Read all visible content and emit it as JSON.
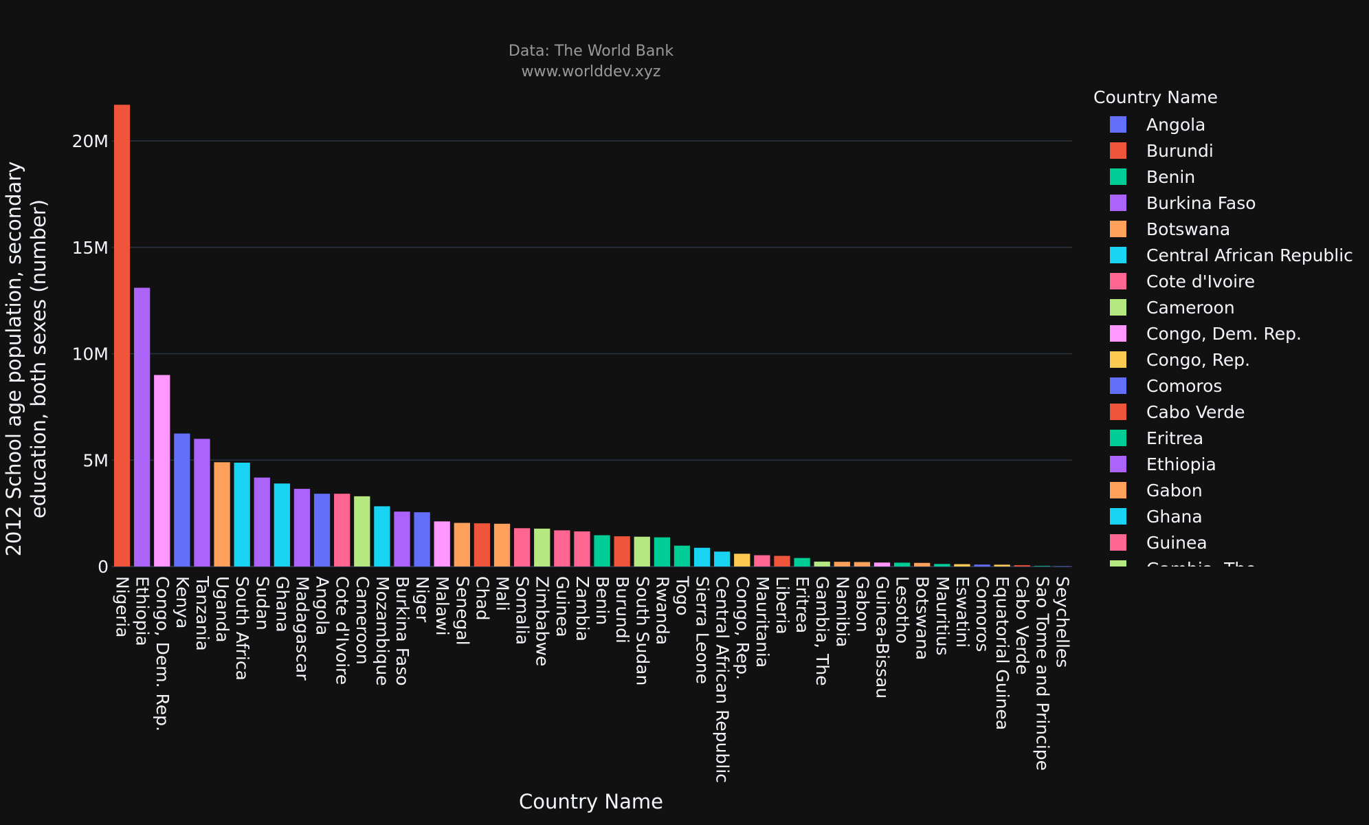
{
  "chart_data": {
    "type": "bar",
    "title": "Data: The World Bank",
    "subtitle": "www.worlddev.xyz",
    "xlabel": "Country Name",
    "ylabel_lines": [
      "2012 School age population, secondary",
      "education, both sexes (number)"
    ],
    "ylim": [
      0,
      22000000
    ],
    "yticks": [
      {
        "value": 0,
        "label": "0"
      },
      {
        "value": 5000000,
        "label": "5M"
      },
      {
        "value": 10000000,
        "label": "10M"
      },
      {
        "value": 15000000,
        "label": "15M"
      },
      {
        "value": 20000000,
        "label": "20M"
      }
    ],
    "grid": true,
    "legend_position": "right",
    "legend_title": "Country Name",
    "legend": [
      {
        "label": "Angola",
        "color": "#636efa"
      },
      {
        "label": "Burundi",
        "color": "#EF553B"
      },
      {
        "label": "Benin",
        "color": "#00cc96"
      },
      {
        "label": "Burkina Faso",
        "color": "#ab63fa"
      },
      {
        "label": "Botswana",
        "color": "#FFA15A"
      },
      {
        "label": "Central African Republic",
        "color": "#19d3f3"
      },
      {
        "label": "Cote d'Ivoire",
        "color": "#FF6692"
      },
      {
        "label": "Cameroon",
        "color": "#B6E880"
      },
      {
        "label": "Congo, Dem. Rep.",
        "color": "#FF97FF"
      },
      {
        "label": "Congo, Rep.",
        "color": "#FECB52"
      },
      {
        "label": "Comoros",
        "color": "#636efa"
      },
      {
        "label": "Cabo Verde",
        "color": "#EF553B"
      },
      {
        "label": "Eritrea",
        "color": "#00cc96"
      },
      {
        "label": "Ethiopia",
        "color": "#ab63fa"
      },
      {
        "label": "Gabon",
        "color": "#FFA15A"
      },
      {
        "label": "Ghana",
        "color": "#19d3f3"
      },
      {
        "label": "Guinea",
        "color": "#FF6692"
      },
      {
        "label": "Gambia, The",
        "color": "#B6E880"
      }
    ],
    "bars": [
      {
        "category": "Nigeria",
        "value": 21700000,
        "color": "#EF553B"
      },
      {
        "category": "Ethiopia",
        "value": 13100000,
        "color": "#ab63fa"
      },
      {
        "category": "Congo, Dem. Rep.",
        "value": 9000000,
        "color": "#FF97FF"
      },
      {
        "category": "Kenya",
        "value": 6250000,
        "color": "#636efa"
      },
      {
        "category": "Tanzania",
        "value": 6000000,
        "color": "#ab63fa"
      },
      {
        "category": "Uganda",
        "value": 4900000,
        "color": "#FFA15A"
      },
      {
        "category": "South Africa",
        "value": 4880000,
        "color": "#19d3f3"
      },
      {
        "category": "Sudan",
        "value": 4180000,
        "color": "#ab63fa"
      },
      {
        "category": "Ghana",
        "value": 3900000,
        "color": "#19d3f3"
      },
      {
        "category": "Madagascar",
        "value": 3650000,
        "color": "#ab63fa"
      },
      {
        "category": "Angola",
        "value": 3420000,
        "color": "#636efa"
      },
      {
        "category": "Cote d'Ivoire",
        "value": 3420000,
        "color": "#FF6692"
      },
      {
        "category": "Cameroon",
        "value": 3300000,
        "color": "#B6E880"
      },
      {
        "category": "Mozambique",
        "value": 2830000,
        "color": "#19d3f3"
      },
      {
        "category": "Burkina Faso",
        "value": 2580000,
        "color": "#ab63fa"
      },
      {
        "category": "Niger",
        "value": 2550000,
        "color": "#636efa"
      },
      {
        "category": "Malawi",
        "value": 2120000,
        "color": "#FF97FF"
      },
      {
        "category": "Senegal",
        "value": 2050000,
        "color": "#FFA15A"
      },
      {
        "category": "Chad",
        "value": 2030000,
        "color": "#EF553B"
      },
      {
        "category": "Mali",
        "value": 2010000,
        "color": "#FFA15A"
      },
      {
        "category": "Somalia",
        "value": 1800000,
        "color": "#FF6692"
      },
      {
        "category": "Zimbabwe",
        "value": 1780000,
        "color": "#B6E880"
      },
      {
        "category": "Guinea",
        "value": 1700000,
        "color": "#FF6692"
      },
      {
        "category": "Zambia",
        "value": 1650000,
        "color": "#FF6692"
      },
      {
        "category": "Benin",
        "value": 1470000,
        "color": "#00cc96"
      },
      {
        "category": "Burundi",
        "value": 1420000,
        "color": "#EF553B"
      },
      {
        "category": "South Sudan",
        "value": 1400000,
        "color": "#B6E880"
      },
      {
        "category": "Rwanda",
        "value": 1370000,
        "color": "#00cc96"
      },
      {
        "category": "Togo",
        "value": 980000,
        "color": "#00cc96"
      },
      {
        "category": "Sierra Leone",
        "value": 880000,
        "color": "#19d3f3"
      },
      {
        "category": "Central African Republic",
        "value": 700000,
        "color": "#19d3f3"
      },
      {
        "category": "Congo, Rep.",
        "value": 600000,
        "color": "#FECB52"
      },
      {
        "category": "Mauritania",
        "value": 530000,
        "color": "#FF6692"
      },
      {
        "category": "Liberia",
        "value": 500000,
        "color": "#EF553B"
      },
      {
        "category": "Eritrea",
        "value": 400000,
        "color": "#00cc96"
      },
      {
        "category": "Gambia, The",
        "value": 230000,
        "color": "#B6E880"
      },
      {
        "category": "Namibia",
        "value": 220000,
        "color": "#FFA15A"
      },
      {
        "category": "Gabon",
        "value": 210000,
        "color": "#FFA15A"
      },
      {
        "category": "Guinea-Bissau",
        "value": 185000,
        "color": "#FF97FF"
      },
      {
        "category": "Lesotho",
        "value": 180000,
        "color": "#00cc96"
      },
      {
        "category": "Botswana",
        "value": 170000,
        "color": "#FFA15A"
      },
      {
        "category": "Mauritius",
        "value": 120000,
        "color": "#00cc96"
      },
      {
        "category": "Eswatini",
        "value": 110000,
        "color": "#FECB52"
      },
      {
        "category": "Comoros",
        "value": 90000,
        "color": "#636efa"
      },
      {
        "category": "Equatorial Guinea",
        "value": 85000,
        "color": "#FECB52"
      },
      {
        "category": "Cabo Verde",
        "value": 60000,
        "color": "#EF553B"
      },
      {
        "category": "Sao Tome and Principe",
        "value": 25000,
        "color": "#00cc96"
      },
      {
        "category": "Seychelles",
        "value": 7000,
        "color": "#636efa"
      }
    ]
  }
}
